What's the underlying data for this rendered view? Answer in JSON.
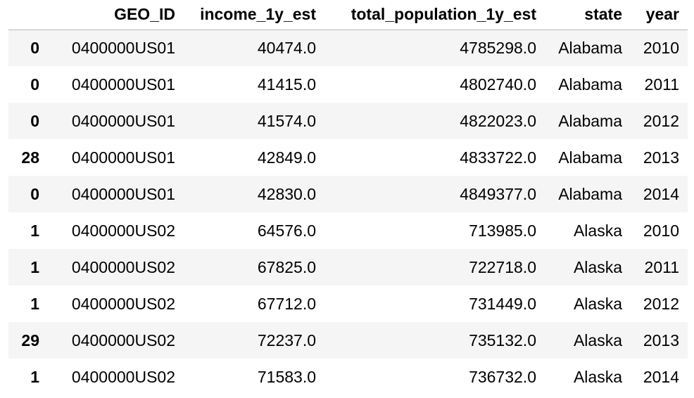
{
  "table": {
    "columns": [
      "",
      "GEO_ID",
      "income_1y_est",
      "total_population_1y_est",
      "state",
      "year"
    ],
    "rows": [
      {
        "index": "0",
        "geo_id": "0400000US01",
        "income": "40474.0",
        "population": "4785298.0",
        "state": "Alabama",
        "year": "2010"
      },
      {
        "index": "0",
        "geo_id": "0400000US01",
        "income": "41415.0",
        "population": "4802740.0",
        "state": "Alabama",
        "year": "2011"
      },
      {
        "index": "0",
        "geo_id": "0400000US01",
        "income": "41574.0",
        "population": "4822023.0",
        "state": "Alabama",
        "year": "2012"
      },
      {
        "index": "28",
        "geo_id": "0400000US01",
        "income": "42849.0",
        "population": "4833722.0",
        "state": "Alabama",
        "year": "2013"
      },
      {
        "index": "0",
        "geo_id": "0400000US01",
        "income": "42830.0",
        "population": "4849377.0",
        "state": "Alabama",
        "year": "2014"
      },
      {
        "index": "1",
        "geo_id": "0400000US02",
        "income": "64576.0",
        "population": "713985.0",
        "state": "Alaska",
        "year": "2010"
      },
      {
        "index": "1",
        "geo_id": "0400000US02",
        "income": "67825.0",
        "population": "722718.0",
        "state": "Alaska",
        "year": "2011"
      },
      {
        "index": "1",
        "geo_id": "0400000US02",
        "income": "67712.0",
        "population": "731449.0",
        "state": "Alaska",
        "year": "2012"
      },
      {
        "index": "29",
        "geo_id": "0400000US02",
        "income": "72237.0",
        "population": "735132.0",
        "state": "Alaska",
        "year": "2013"
      },
      {
        "index": "1",
        "geo_id": "0400000US02",
        "income": "71583.0",
        "population": "736732.0",
        "state": "Alaska",
        "year": "2014"
      }
    ]
  }
}
